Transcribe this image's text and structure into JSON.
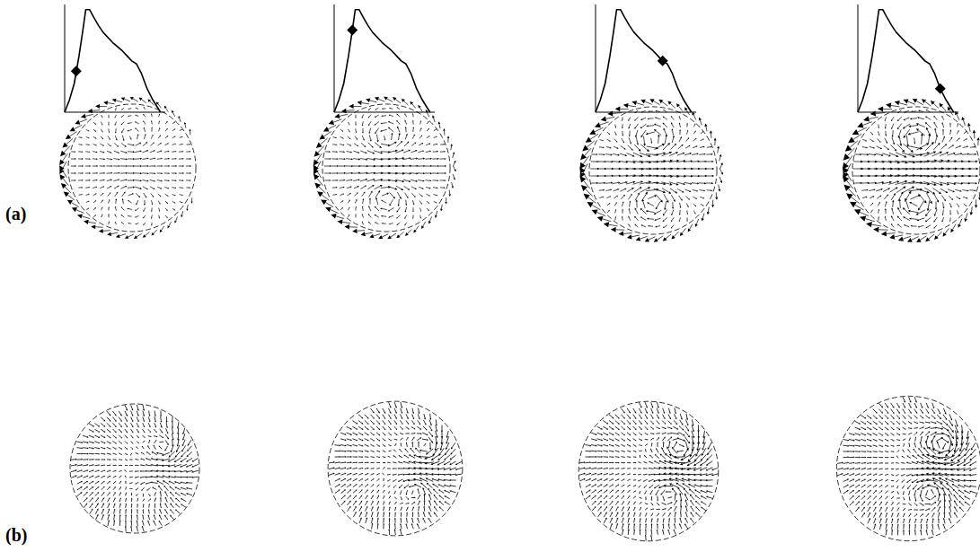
{
  "chart_data": [
    {
      "type": "line",
      "x": [
        0,
        0.05,
        0.1,
        0.15,
        0.19,
        0.22,
        0.26,
        0.3,
        0.35,
        0.4,
        0.5,
        0.6,
        0.65,
        0.7,
        0.75,
        0.8,
        0.86,
        0.92,
        1.0
      ],
      "series": [
        {
          "color": "#000000",
          "values": [
            0,
            0.12,
            0.28,
            0.55,
            0.8,
            1.0,
            1.0,
            0.93,
            0.85,
            0.78,
            0.68,
            0.6,
            0.55,
            0.5,
            0.47,
            0.38,
            0.23,
            0.12,
            0
          ]
        },
        {
          "type": "scatter",
          "marker": "diamond",
          "color": "#000000",
          "x": [
            0.12
          ],
          "values": [
            0.4
          ]
        }
      ],
      "xlim": [
        0,
        1.05
      ],
      "ylim": [
        0,
        1.05
      ],
      "tick_labels": false,
      "grid": false
    },
    {
      "type": "line",
      "x": [
        0,
        0.05,
        0.1,
        0.15,
        0.19,
        0.22,
        0.26,
        0.3,
        0.35,
        0.4,
        0.5,
        0.6,
        0.65,
        0.7,
        0.75,
        0.8,
        0.86,
        0.92,
        1.0
      ],
      "series": [
        {
          "color": "#000000",
          "values": [
            0,
            0.12,
            0.28,
            0.55,
            0.8,
            1.0,
            1.0,
            0.93,
            0.85,
            0.78,
            0.68,
            0.6,
            0.55,
            0.5,
            0.47,
            0.38,
            0.23,
            0.12,
            0
          ]
        },
        {
          "type": "scatter",
          "marker": "diamond",
          "color": "#000000",
          "x": [
            0.19
          ],
          "values": [
            0.8
          ]
        }
      ],
      "xlim": [
        0,
        1.05
      ],
      "ylim": [
        0,
        1.05
      ],
      "tick_labels": false,
      "grid": false
    },
    {
      "type": "line",
      "x": [
        0,
        0.05,
        0.1,
        0.15,
        0.19,
        0.22,
        0.26,
        0.3,
        0.35,
        0.4,
        0.5,
        0.6,
        0.65,
        0.7,
        0.75,
        0.8,
        0.86,
        0.92,
        1.0
      ],
      "series": [
        {
          "color": "#000000",
          "values": [
            0,
            0.12,
            0.28,
            0.55,
            0.8,
            1.0,
            1.0,
            0.93,
            0.85,
            0.78,
            0.68,
            0.6,
            0.55,
            0.5,
            0.47,
            0.38,
            0.23,
            0.12,
            0
          ]
        },
        {
          "type": "scatter",
          "marker": "diamond",
          "color": "#000000",
          "x": [
            0.7
          ],
          "values": [
            0.5
          ]
        }
      ],
      "xlim": [
        0,
        1.05
      ],
      "ylim": [
        0,
        1.05
      ],
      "tick_labels": false,
      "grid": false
    },
    {
      "type": "line",
      "x": [
        0,
        0.05,
        0.1,
        0.15,
        0.19,
        0.22,
        0.26,
        0.3,
        0.35,
        0.4,
        0.5,
        0.6,
        0.65,
        0.7,
        0.75,
        0.8,
        0.86,
        0.92,
        1.0
      ],
      "series": [
        {
          "color": "#000000",
          "values": [
            0,
            0.12,
            0.28,
            0.55,
            0.8,
            1.0,
            1.0,
            0.93,
            0.85,
            0.78,
            0.68,
            0.6,
            0.55,
            0.5,
            0.47,
            0.38,
            0.23,
            0.12,
            0
          ]
        },
        {
          "type": "scatter",
          "marker": "diamond",
          "color": "#000000",
          "x": [
            0.86
          ],
          "values": [
            0.23
          ]
        }
      ],
      "xlim": [
        0,
        1.05
      ],
      "ylim": [
        0,
        1.05
      ],
      "tick_labels": false,
      "grid": false
    }
  ],
  "panels": {
    "labels": [
      "(a)",
      "(b)"
    ]
  }
}
